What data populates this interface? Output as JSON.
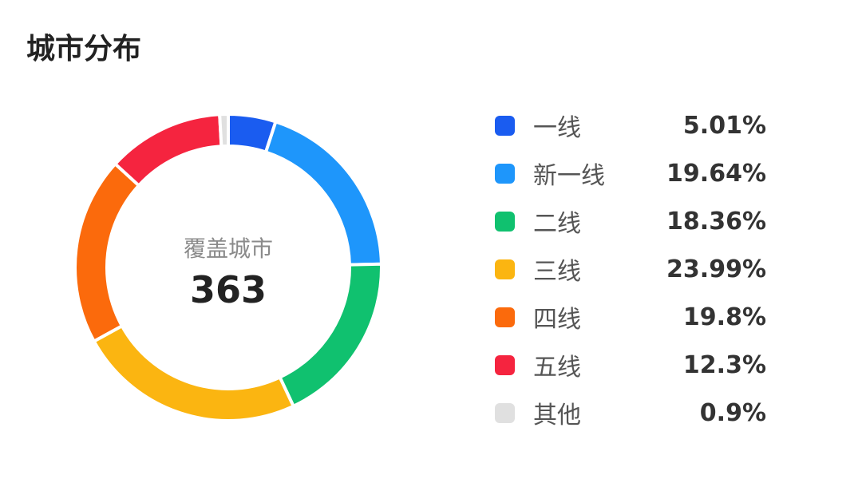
{
  "header": {
    "title": "城市分布"
  },
  "chart_data": {
    "type": "pie",
    "variant": "donut",
    "center_label": "覆盖城市",
    "center_value": "363",
    "legend_position": "right",
    "categories": [
      "一线",
      "新一线",
      "二线",
      "三线",
      "四线",
      "五线",
      "其他"
    ],
    "values": [
      5.01,
      19.64,
      18.36,
      23.99,
      19.8,
      12.3,
      0.9
    ],
    "value_labels": [
      "5.01%",
      "19.64%",
      "18.36%",
      "23.99%",
      "19.8%",
      "12.3%",
      "0.9%"
    ],
    "colors": [
      "#1a5cf0",
      "#1e96fb",
      "#10c16f",
      "#fbb511",
      "#fb6a0c",
      "#f5243f",
      "#e0e0e0"
    ]
  }
}
